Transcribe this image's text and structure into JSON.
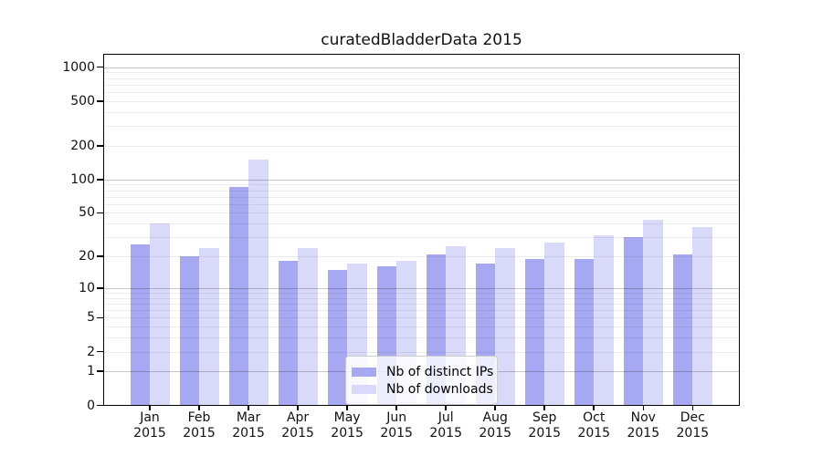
{
  "window": {
    "title": "curatedBladderData 2015"
  },
  "colors": {
    "distinct_ips_bar": "#a7a8f2",
    "downloads_bar": "#d9daf9",
    "major_gridline": "rgba(0,0,0,0.22)",
    "minor_gridline": "rgba(0,0,0,0.07)",
    "axis": "#000000",
    "background": "#ffffff",
    "legend_border": "#cccccc"
  },
  "chart_data": {
    "type": "bar",
    "title": "curatedBladderData 2015",
    "xlabel": "",
    "ylabel": "",
    "categories": [
      "Jan",
      "Feb",
      "Mar",
      "Apr",
      "May",
      "Jun",
      "Jul",
      "Aug",
      "Sep",
      "Oct",
      "Nov",
      "Dec"
    ],
    "year_label": "2015",
    "y_scale": "log10(value+1)",
    "y_ticks": [
      0,
      1,
      2,
      5,
      10,
      20,
      50,
      100,
      200,
      500,
      1000
    ],
    "major_gridlines": [
      1,
      10,
      100,
      1000
    ],
    "minor_gridlines": [
      2,
      3,
      4,
      5,
      6,
      7,
      8,
      9,
      20,
      30,
      40,
      50,
      60,
      70,
      80,
      90,
      200,
      300,
      400,
      500,
      600,
      700,
      800,
      900
    ],
    "ylim": [
      0,
      1315
    ],
    "grid": "horizontal major+minor, drawn over bars",
    "legend_position": "inside plot, lower center-left",
    "series": [
      {
        "name": "Nb of distinct IPs",
        "color": "#a7a8f2",
        "values": [
          26,
          20,
          86,
          18,
          15,
          16,
          21,
          17,
          19,
          19,
          30,
          21
        ]
      },
      {
        "name": "Nb of downloads",
        "color": "#d9daf9",
        "values": [
          40,
          24,
          150,
          24,
          17,
          18,
          25,
          24,
          27,
          31,
          43,
          37
        ]
      }
    ]
  }
}
